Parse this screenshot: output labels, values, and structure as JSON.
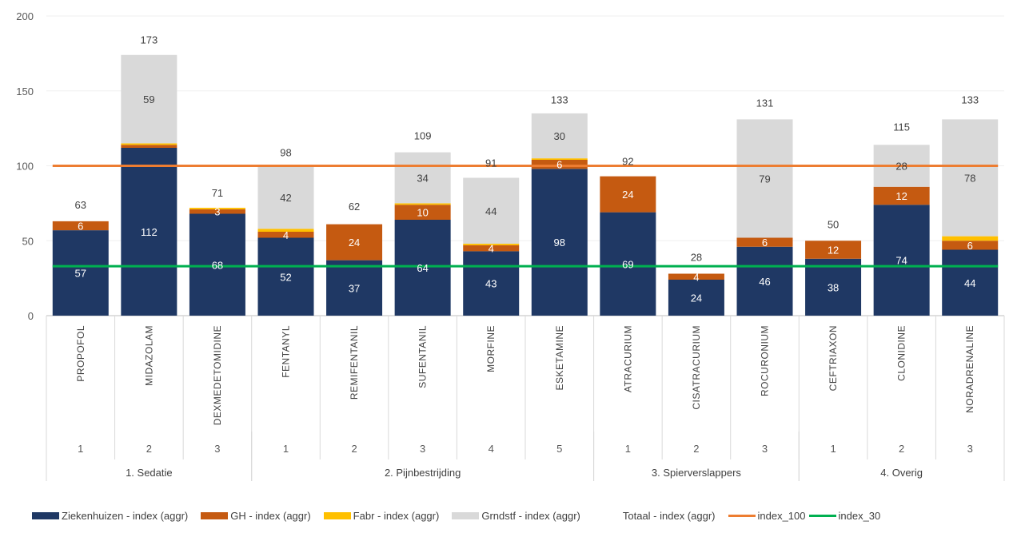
{
  "chart_data": {
    "type": "bar",
    "stacked": true,
    "ylim": [
      0,
      200
    ],
    "yticks": [
      0,
      50,
      100,
      150,
      200
    ],
    "grid": true,
    "legend_position": "bottom",
    "categories": [
      "PROPOFOL",
      "MIDAZOLAM",
      "DEXMEDETOMIDINE",
      "FENTANYL",
      "REMIFENTANIL",
      "SUFENTANIL",
      "MORFINE",
      "ESKETAMINE",
      "ATRACURIUM",
      "CISATRACURIUM",
      "ROCURONIUM",
      "CEFTRIAXON",
      "CLONIDINE",
      "NORADRENALINE"
    ],
    "subcategories": [
      "1",
      "2",
      "3",
      "1",
      "2",
      "3",
      "4",
      "5",
      "1",
      "2",
      "3",
      "1",
      "2",
      "3"
    ],
    "groups": [
      {
        "label": "1. Sedatie",
        "count": 3
      },
      {
        "label": "2. Pijnbestrijding",
        "count": 5
      },
      {
        "label": "3. Spierverslappers",
        "count": 3
      },
      {
        "label": "4. Overig",
        "count": 3
      }
    ],
    "series": [
      {
        "name": "Ziekenhuizen - index (aggr)",
        "color": "#1f3864",
        "label_color": "#ffffff",
        "values": [
          57,
          112,
          68,
          52,
          37,
          64,
          43,
          98,
          69,
          24,
          46,
          38,
          74,
          44
        ],
        "labels": [
          "57",
          "112",
          "68",
          "52",
          "37",
          "64",
          "43",
          "98",
          "69",
          "24",
          "46",
          "38",
          "74",
          "44"
        ]
      },
      {
        "name": "GH - index (aggr)",
        "color": "#c55a11",
        "label_color": "#ffffff",
        "values": [
          6,
          2,
          3,
          4,
          24,
          10,
          4,
          6,
          24,
          4,
          6,
          12,
          12,
          6
        ],
        "labels": [
          "6",
          "",
          "3",
          "4",
          "24",
          "10",
          "4",
          "6",
          "24",
          "4",
          "6",
          "12",
          "12",
          "6"
        ]
      },
      {
        "name": "Fabr - index (aggr)",
        "color": "#ffc000",
        "label_color": "#404040",
        "values": [
          0,
          1,
          1,
          2,
          0,
          1,
          1,
          1,
          0,
          0,
          0,
          0,
          0,
          3
        ],
        "labels": [
          "",
          "",
          "",
          "",
          "",
          "",
          "",
          "",
          "",
          "",
          "",
          "",
          "",
          ""
        ]
      },
      {
        "name": "Grndstf - index (aggr)",
        "color": "#d9d9d9",
        "label_color": "#404040",
        "values": [
          0,
          59,
          0,
          42,
          0,
          34,
          44,
          30,
          0,
          0,
          79,
          0,
          28,
          78
        ],
        "labels": [
          "",
          "59",
          "",
          "42",
          "",
          "34",
          "44",
          "30",
          "",
          "",
          "79",
          "",
          "28",
          "78"
        ]
      }
    ],
    "totals": {
      "name": "Totaal - index (aggr)",
      "values": [
        63,
        173,
        71,
        98,
        62,
        109,
        91,
        133,
        92,
        28,
        131,
        50,
        115,
        133
      ],
      "labels": [
        "63",
        "173",
        "71",
        "98",
        "62",
        "109",
        "91",
        "133",
        "92",
        "28",
        "131",
        "50",
        "115",
        "133"
      ]
    },
    "lines": [
      {
        "name": "index_100",
        "value": 100,
        "color": "#ed7d31"
      },
      {
        "name": "index_30",
        "value": 33,
        "color": "#00b050"
      }
    ]
  },
  "legend": {
    "items": [
      {
        "name": "Ziekenhuizen - index (aggr)",
        "kind": "box",
        "color": "#1f3864"
      },
      {
        "name": "GH - index (aggr)",
        "kind": "box",
        "color": "#c55a11"
      },
      {
        "name": "Fabr - index (aggr)",
        "kind": "box",
        "color": "#ffc000"
      },
      {
        "name": "Grndstf - index (aggr)",
        "kind": "box",
        "color": "#d9d9d9"
      },
      {
        "name": "Totaal - index (aggr)",
        "kind": "none",
        "color": ""
      },
      {
        "name": "index_100",
        "kind": "line",
        "color": "#ed7d31"
      },
      {
        "name": "index_30",
        "kind": "line",
        "color": "#00b050"
      }
    ]
  }
}
